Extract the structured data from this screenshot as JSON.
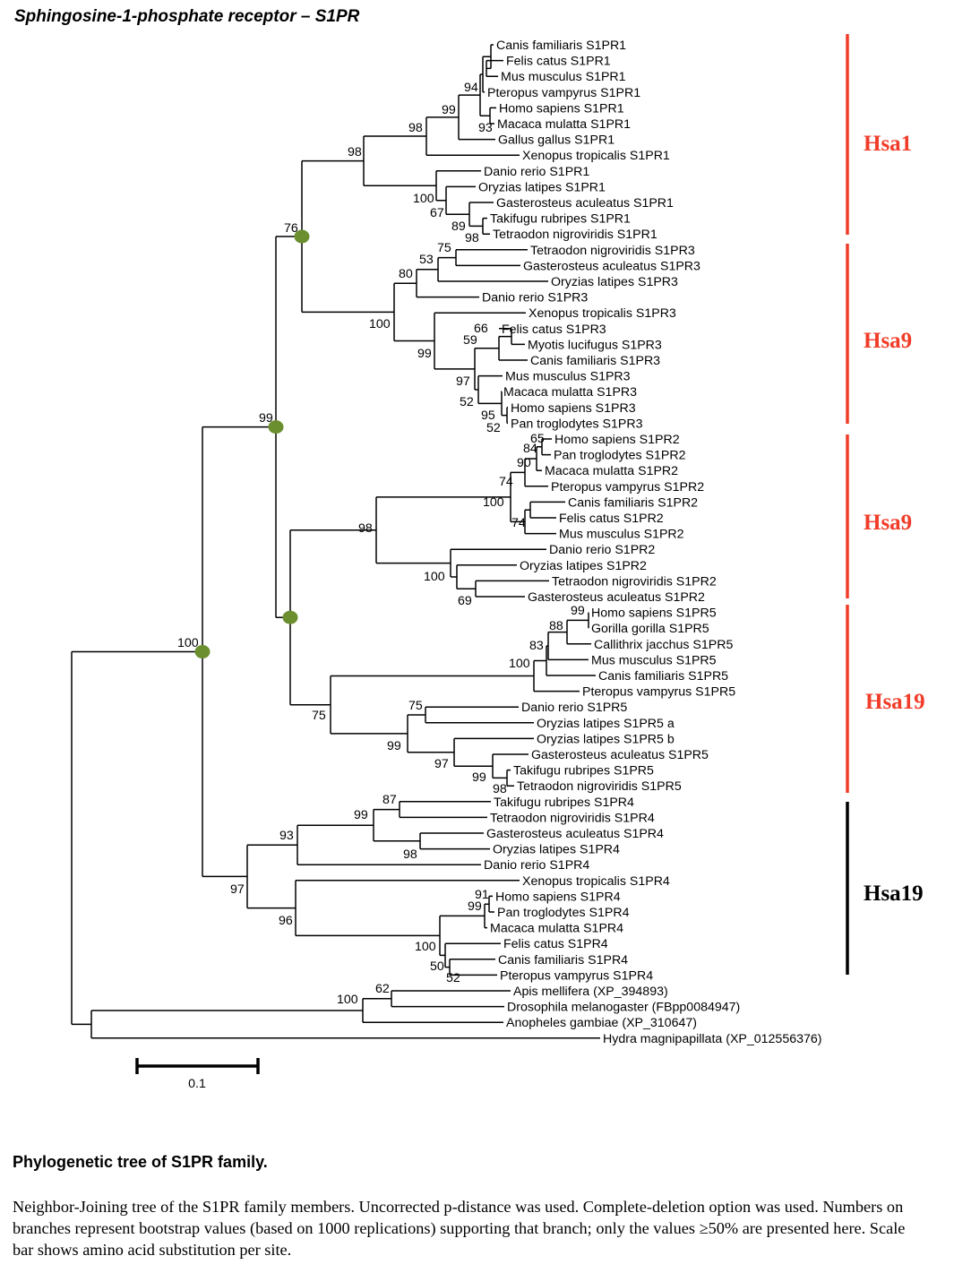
{
  "title": "Sphingosine-1-phosphate receptor – S1PR",
  "tree": {
    "leaves": [
      "Canis familiaris S1PR1",
      "Felis catus S1PR1",
      "Mus musculus S1PR1",
      "Pteropus vampyrus S1PR1",
      "Homo sapiens S1PR1",
      "Macaca mulatta S1PR1",
      "Gallus gallus S1PR1",
      "Xenopus tropicalis S1PR1",
      "Danio rerio S1PR1",
      "Oryzias latipes S1PR1",
      "Gasterosteus aculeatus S1PR1",
      "Takifugu rubripes S1PR1",
      "Tetraodon nigroviridis S1PR1",
      "Tetraodon nigroviridis S1PR3",
      "Gasterosteus aculeatus S1PR3",
      "Oryzias latipes S1PR3",
      "Danio rerio S1PR3",
      "Xenopus tropicalis S1PR3",
      "Felis catus S1PR3",
      "Myotis lucifugus S1PR3",
      "Canis familiaris S1PR3",
      "Mus musculus S1PR3",
      "Macaca mulatta S1PR3",
      "Homo sapiens S1PR3",
      "Pan troglodytes S1PR3",
      "Homo sapiens S1PR2",
      "Pan troglodytes S1PR2",
      "Macaca mulatta S1PR2",
      "Pteropus vampyrus S1PR2",
      "Canis familiaris S1PR2",
      "Felis catus S1PR2",
      "Mus musculus S1PR2",
      "Danio rerio S1PR2",
      "Oryzias latipes S1PR2",
      "Tetraodon nigroviridis S1PR2",
      "Gasterosteus aculeatus S1PR2",
      "Homo sapiens S1PR5",
      "Gorilla gorilla S1PR5",
      "Callithrix jacchus S1PR5",
      "Mus musculus S1PR5",
      "Canis familiaris S1PR5",
      "Pteropus vampyrus S1PR5",
      "Danio rerio S1PR5",
      "Oryzias latipes S1PR5 a",
      "Oryzias latipes S1PR5 b",
      "Gasterosteus aculeatus S1PR5",
      "Takifugu rubripes S1PR5",
      "Tetraodon nigroviridis S1PR5",
      "Takifugu rubripes S1PR4",
      "Tetraodon nigroviridis S1PR4",
      "Gasterosteus aculeatus S1PR4",
      "Oryzias latipes S1PR4",
      "Danio rerio S1PR4",
      "Xenopus tropicalis S1PR4",
      "Homo sapiens S1PR4",
      "Pan troglodytes S1PR4",
      "Macaca mulatta S1PR4",
      "Felis catus S1PR4",
      "Canis familiaris S1PR4",
      "Pteropus vampyrus S1PR4",
      "Apis mellifera (XP_394893)",
      "Drosophila melanogaster (FBpp0084947)",
      "Anopheles gambiae (XP_310647)",
      "Hydra magnipapillata (XP_012556376)"
    ],
    "bootstrap": [
      "76",
      "99",
      "100",
      "98",
      "98",
      "99",
      "94",
      "93",
      "100",
      "67",
      "89",
      "98",
      "53",
      "75",
      "80",
      "100",
      "99",
      "66",
      "59",
      "97",
      "52",
      "95",
      "52",
      "65",
      "84",
      "90",
      "74",
      "100",
      "74",
      "98",
      "100",
      "69",
      "99",
      "88",
      "83",
      "100",
      "75",
      "75",
      "99",
      "97",
      "99",
      "98",
      "87",
      "99",
      "98",
      "93",
      "97",
      "96",
      "91",
      "99",
      "100",
      "50",
      "52",
      "62",
      "100"
    ],
    "chromosome_groups": [
      {
        "label": "Hsa1",
        "color": "#f03c28"
      },
      {
        "label": "Hsa9",
        "color": "#f03c28"
      },
      {
        "label": "Hsa9",
        "color": "#f03c28"
      },
      {
        "label": "Hsa19",
        "color": "#f03c28"
      },
      {
        "label": "Hsa19",
        "color": "#000000"
      }
    ],
    "node_marker_color": "#6b8e2f",
    "scale_bar_label": "0.1"
  },
  "caption": {
    "title": "Phylogenetic tree of S1PR family.",
    "text": "Neighbor-Joining tree of the S1PR family members. Uncorrected p-distance was used. Complete-deletion option was used. Numbers on branches represent bootstrap values (based on 1000 replications) supporting that branch; only the values ≥50% are presented here. Scale bar shows amino acid substitution per site."
  }
}
